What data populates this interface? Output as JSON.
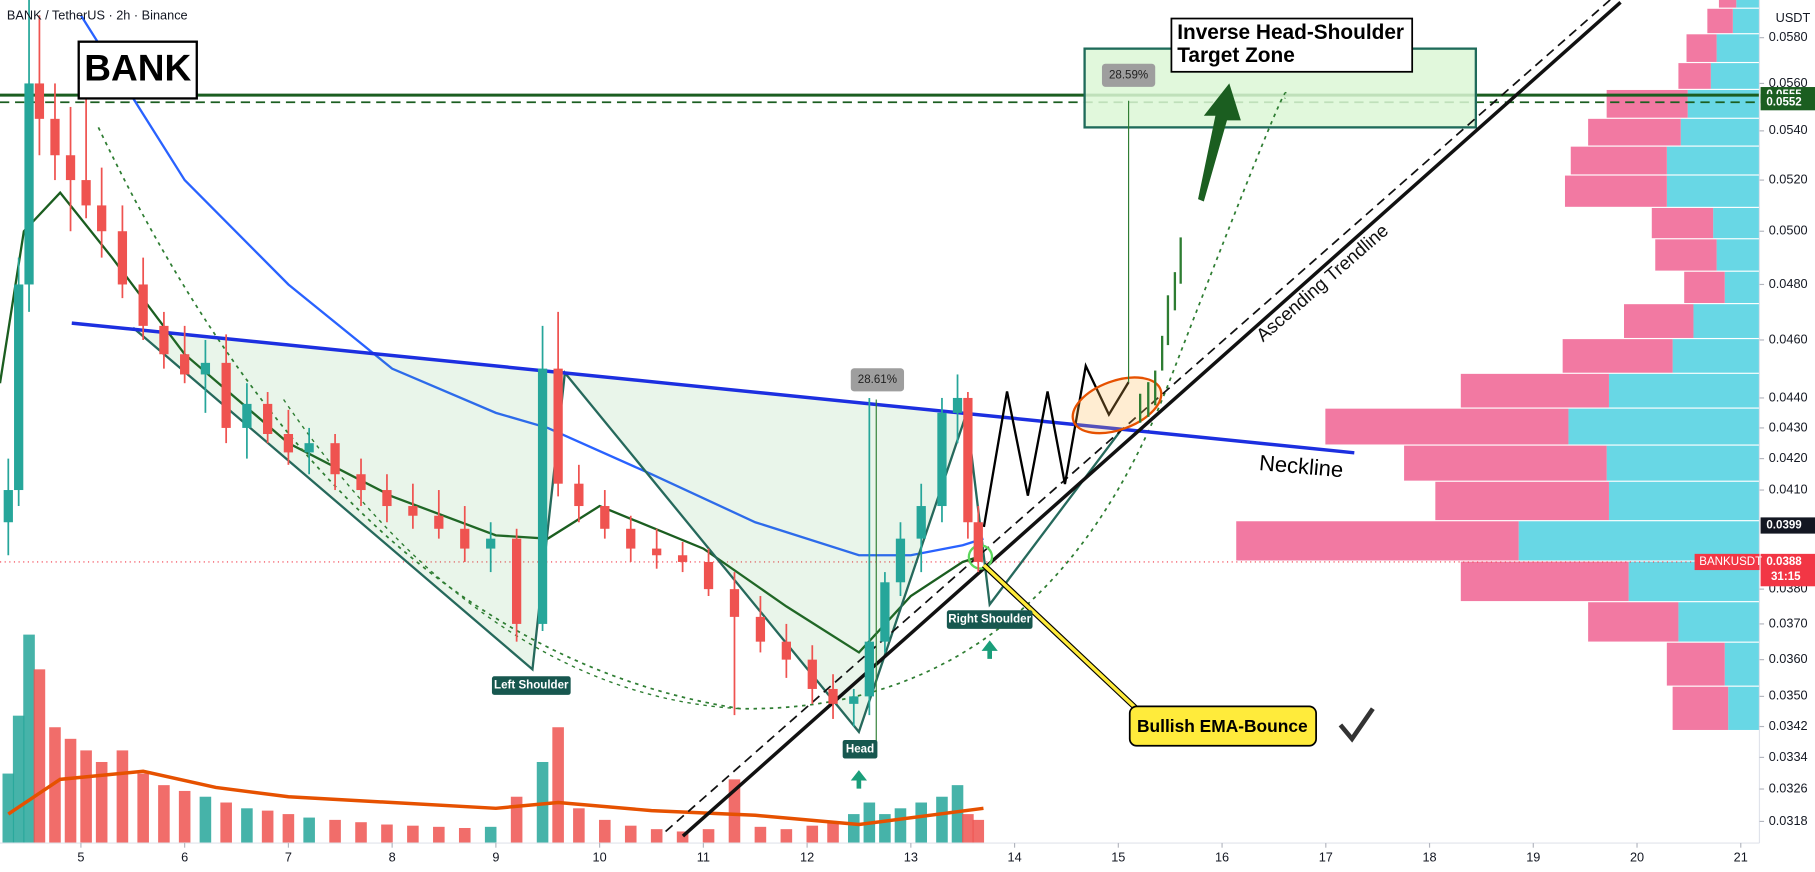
{
  "chart_data": {
    "type": "candlestick",
    "title": "BANK / TetherUS · 2h · Binance",
    "currency": "USDT",
    "log_scale": true,
    "grid": false,
    "up_color": "#26a69a",
    "down_color": "#ef5350",
    "xlim": [
      4.22,
      21.18
    ],
    "xticks": [
      5,
      6,
      7,
      8,
      9,
      10,
      11,
      12,
      13,
      14,
      15,
      16,
      17,
      18,
      19,
      20,
      21
    ],
    "ylim": [
      0.0315,
      0.0597
    ],
    "yticks": [
      {
        "value": 0.058,
        "label": "0.0580"
      },
      {
        "value": 0.056,
        "label": "0.0560"
      },
      {
        "value": 0.054,
        "label": "0.0540"
      },
      {
        "value": 0.052,
        "label": "0.0520"
      },
      {
        "value": 0.05,
        "label": "0.0500"
      },
      {
        "value": 0.048,
        "label": "0.0480"
      },
      {
        "value": 0.046,
        "label": "0.0460"
      },
      {
        "value": 0.044,
        "label": "0.0440"
      },
      {
        "value": 0.043,
        "label": "0.0430"
      },
      {
        "value": 0.042,
        "label": "0.0420"
      },
      {
        "value": 0.041,
        "label": "0.0410"
      },
      {
        "value": 0.038,
        "label": "0.0380"
      },
      {
        "value": 0.037,
        "label": "0.0370"
      },
      {
        "value": 0.036,
        "label": "0.0360"
      },
      {
        "value": 0.035,
        "label": "0.0350"
      },
      {
        "value": 0.0342,
        "label": "0.0342"
      },
      {
        "value": 0.0334,
        "label": "0.0334"
      },
      {
        "value": 0.0326,
        "label": "0.0326"
      },
      {
        "value": 0.0318,
        "label": "0.0318"
      }
    ],
    "x": [
      4.3,
      4.4,
      4.5,
      4.6,
      4.75,
      4.9,
      5.05,
      5.2,
      5.4,
      5.6,
      5.8,
      6.0,
      6.2,
      6.4,
      6.6,
      6.8,
      7.0,
      7.2,
      7.45,
      7.7,
      7.95,
      8.2,
      8.45,
      8.7,
      8.95,
      9.2,
      9.45,
      9.6,
      9.8,
      10.05,
      10.3,
      10.55,
      10.8,
      11.05,
      11.3,
      11.55,
      11.8,
      12.05,
      12.25,
      12.45,
      12.6,
      12.75,
      12.9,
      13.1,
      13.3,
      13.45,
      13.55,
      13.65
    ],
    "open": [
      0.04,
      0.041,
      0.048,
      0.056,
      0.0545,
      0.053,
      0.052,
      0.051,
      0.05,
      0.048,
      0.0465,
      0.0455,
      0.0448,
      0.0452,
      0.043,
      0.0438,
      0.0428,
      0.0422,
      0.0425,
      0.0415,
      0.041,
      0.0405,
      0.0402,
      0.0398,
      0.0392,
      0.0395,
      0.037,
      0.045,
      0.0412,
      0.0405,
      0.0398,
      0.0392,
      0.039,
      0.0388,
      0.038,
      0.0372,
      0.0365,
      0.036,
      0.0352,
      0.0348,
      0.035,
      0.0365,
      0.0382,
      0.0395,
      0.0405,
      0.0435,
      0.044,
      0.04
    ],
    "high": [
      0.042,
      0.049,
      0.06,
      0.059,
      0.056,
      0.055,
      0.056,
      0.0525,
      0.051,
      0.049,
      0.047,
      0.0465,
      0.046,
      0.0462,
      0.0445,
      0.0442,
      0.0436,
      0.043,
      0.0428,
      0.042,
      0.0415,
      0.0412,
      0.041,
      0.0405,
      0.04,
      0.0398,
      0.0465,
      0.047,
      0.0418,
      0.041,
      0.0402,
      0.0398,
      0.0394,
      0.0392,
      0.0385,
      0.0378,
      0.037,
      0.0364,
      0.0356,
      0.0352,
      0.044,
      0.0385,
      0.04,
      0.0412,
      0.044,
      0.0448,
      0.0442,
      0.0405
    ],
    "low": [
      0.039,
      0.0405,
      0.047,
      0.053,
      0.052,
      0.05,
      0.0505,
      0.049,
      0.0475,
      0.046,
      0.045,
      0.0445,
      0.0435,
      0.0425,
      0.042,
      0.0425,
      0.0418,
      0.0415,
      0.041,
      0.0405,
      0.04,
      0.0398,
      0.0395,
      0.0388,
      0.0385,
      0.0365,
      0.0368,
      0.0408,
      0.04,
      0.0395,
      0.0388,
      0.0386,
      0.0385,
      0.0378,
      0.0345,
      0.0362,
      0.0355,
      0.0348,
      0.0344,
      0.0342,
      0.0345,
      0.0362,
      0.0378,
      0.0385,
      0.04,
      0.0425,
      0.0395,
      0.0385
    ],
    "close": [
      0.041,
      0.048,
      0.056,
      0.0545,
      0.053,
      0.052,
      0.051,
      0.05,
      0.048,
      0.0465,
      0.0455,
      0.0448,
      0.0452,
      0.043,
      0.0438,
      0.0428,
      0.0422,
      0.0425,
      0.0415,
      0.041,
      0.0405,
      0.0402,
      0.0398,
      0.0392,
      0.0395,
      0.037,
      0.045,
      0.0412,
      0.0405,
      0.0398,
      0.0392,
      0.039,
      0.0388,
      0.038,
      0.0372,
      0.0365,
      0.036,
      0.0352,
      0.0348,
      0.035,
      0.0365,
      0.0382,
      0.0395,
      0.0405,
      0.0435,
      0.044,
      0.04,
      0.0388
    ],
    "volume": [
      60,
      110,
      180,
      150,
      100,
      90,
      80,
      70,
      80,
      60,
      50,
      45,
      40,
      35,
      30,
      28,
      25,
      22,
      20,
      18,
      16,
      15,
      14,
      13,
      14,
      40,
      70,
      100,
      30,
      20,
      15,
      12,
      10,
      12,
      55,
      14,
      12,
      15,
      18,
      25,
      35,
      25,
      30,
      35,
      40,
      50,
      25,
      20
    ],
    "volume_ma": {
      "color": "#e65100",
      "x": [
        4.3,
        4.8,
        5.6,
        6.3,
        7,
        8,
        9,
        9.6,
        10.5,
        11.5,
        12.5,
        13.7
      ],
      "values": [
        25,
        55,
        62,
        48,
        40,
        35,
        30,
        35,
        28,
        24,
        16,
        30
      ]
    },
    "ema_lines": [
      {
        "color": "#1b5e20",
        "x": [
          4.22,
          4.45,
          4.8,
          5.3,
          6,
          7,
          8,
          9,
          9.5,
          10,
          11,
          11.8,
          12.5,
          13,
          13.5,
          13.7
        ],
        "values": [
          0.0445,
          0.05,
          0.0515,
          0.049,
          0.0455,
          0.0425,
          0.0408,
          0.0396,
          0.0395,
          0.0405,
          0.0392,
          0.0375,
          0.0362,
          0.0378,
          0.0388,
          0.039
        ]
      },
      {
        "color": "#2962ff",
        "x": [
          5,
          6,
          7,
          8,
          9,
          9.5,
          10.5,
          11.5,
          12.5,
          13,
          13.5,
          13.7
        ],
        "values": [
          0.059,
          0.052,
          0.048,
          0.045,
          0.0435,
          0.043,
          0.0415,
          0.04,
          0.039,
          0.039,
          0.0393,
          0.0395
        ]
      }
    ],
    "volume_profile": {
      "bins": [
        0.05973,
        0.0593,
        0.05815,
        0.05688,
        0.05572,
        0.0545,
        0.05335,
        0.05218,
        0.0509,
        0.04969,
        0.04847,
        0.04728,
        0.04603,
        0.04482,
        0.04364,
        0.04242,
        0.04126,
        0.04003,
        0.03881,
        0.03762,
        0.03647,
        0.03526,
        0.03408
      ],
      "buy": [
        20,
        23,
        37,
        42,
        62,
        68,
        80,
        80,
        40,
        37,
        30,
        57,
        75,
        130,
        165,
        132,
        130,
        208,
        113,
        70,
        30,
        27
      ],
      "sell": [
        15,
        22,
        26,
        28,
        70,
        80,
        83,
        88,
        53,
        53,
        35,
        60,
        95,
        128,
        210,
        175,
        150,
        244,
        145,
        78,
        50,
        48
      ],
      "buy_color": "#4dd0e1",
      "sell_color": "#f06292"
    },
    "levels": [
      {
        "value": 0.0555,
        "label": "0.0555",
        "color": "#1b5e20",
        "dashed": false
      },
      {
        "value": 0.0552,
        "label": "0.0552",
        "color": "#1b5e20",
        "dashed": true
      }
    ],
    "marker_prices": [
      {
        "value": 0.0399,
        "label": "0.0399",
        "color": "#131722"
      }
    ],
    "last_price": {
      "value": 0.0388,
      "label": "0.0388",
      "symbol": "BANKUSDT",
      "countdown": "31:15",
      "color": "#f23645"
    },
    "measures": [
      {
        "value": 28.59,
        "label": "28.59%"
      },
      {
        "value": 28.61,
        "label": "28.61%"
      }
    ],
    "annotations": {
      "symbol": "BANK",
      "target_zone": [
        "Inverse Head-Shoulder",
        "Target Zone"
      ],
      "trendline": "Ascending Trendline",
      "neckline": "Neckline",
      "left_shoulder": "Left Shoulder",
      "head": "Head",
      "right_shoulder": "Right Shoulder",
      "callout": "Bullish EMA-Bounce"
    }
  }
}
